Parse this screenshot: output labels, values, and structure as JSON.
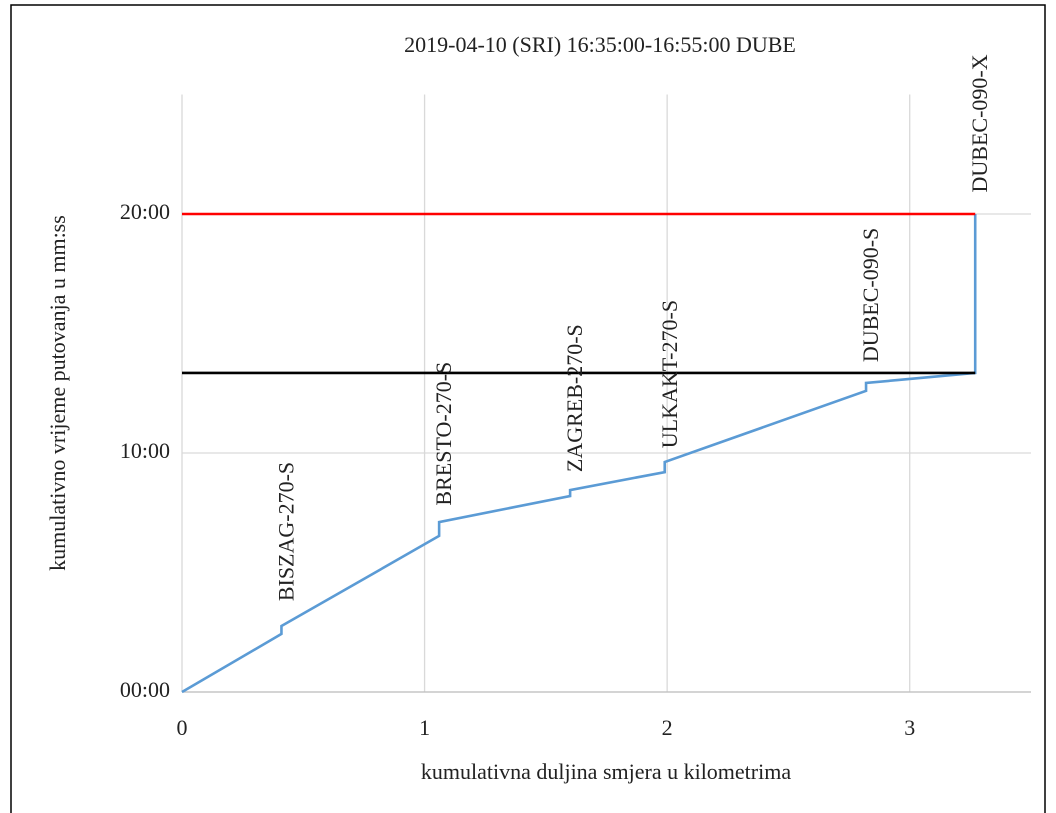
{
  "chart_data": {
    "type": "line",
    "title": "2019-04-10 (SRI) 16:35:00-16:55:00 DUBE",
    "xlabel": "kumulativna duljina smjera u kilometrima",
    "ylabel": "kumulativno vrijeme putovanja u mm:ss",
    "xlim": [
      0,
      3.5
    ],
    "ylim": [
      0,
      25
    ],
    "xticks": [
      0,
      1,
      2,
      3
    ],
    "yticks": [
      {
        "value": 0,
        "label": "00:00"
      },
      {
        "value": 10,
        "label": "10:00"
      },
      {
        "value": 20,
        "label": "20:00"
      }
    ],
    "grid": true,
    "series": [
      {
        "color": "#5b9bd5",
        "x": [
          0,
          0.41,
          0.41,
          1.06,
          1.06,
          1.6,
          1.6,
          1.99,
          1.99,
          2.82,
          2.82,
          3.27,
          3.27
        ],
        "values": [
          0,
          2.43,
          2.76,
          6.53,
          7.11,
          8.2,
          8.45,
          9.2,
          9.62,
          12.6,
          12.93,
          13.35,
          20
        ]
      },
      {
        "color": "#ff0000",
        "x": [
          0,
          3.27
        ],
        "values": [
          20,
          20
        ]
      },
      {
        "color": "#000000",
        "x": [
          0,
          3.27
        ],
        "values": [
          13.35,
          13.35
        ]
      }
    ],
    "annotations": [
      {
        "text": "BISZAG-270-S",
        "x": 0.41,
        "y": 3.8
      },
      {
        "text": "BRESTO-270-S",
        "x": 1.06,
        "y": 7.8
      },
      {
        "text": "ZAGREB-270-S",
        "x": 1.6,
        "y": 9.2
      },
      {
        "text": "ULKAKT-270-S",
        "x": 1.99,
        "y": 10.2
      },
      {
        "text": "DUBEC-090-S",
        "x": 2.82,
        "y": 13.8
      },
      {
        "text": "DUBEC-090-X",
        "x": 3.27,
        "y": 20.9
      }
    ]
  }
}
